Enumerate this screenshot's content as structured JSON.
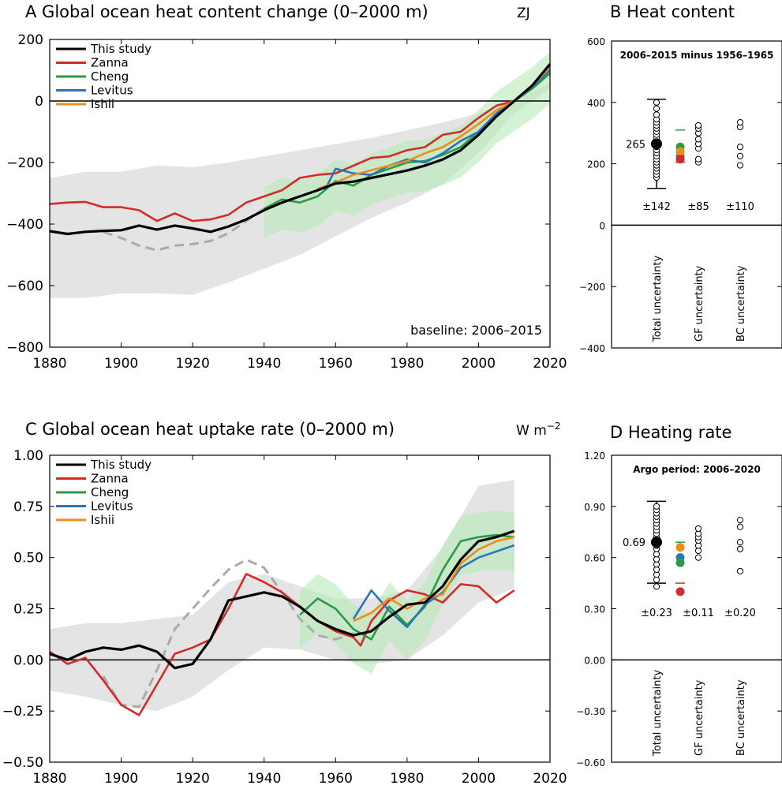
{
  "colors": {
    "this_study": "#000000",
    "zanna": "#d42a2a",
    "cheng": "#2a9b44",
    "levitus": "#2a74b8",
    "ishii": "#f08c1a",
    "uncertainty_band": "#e4e4e4",
    "cheng_band": "#b8ebb8",
    "levitus_band": "#b8cdea",
    "early_estimate": "#aaaaaa"
  },
  "chart_data": [
    {
      "id": "A",
      "type": "line",
      "letter": "A",
      "title": "Global ocean heat content change (0–2000 m)",
      "unit": "ZJ",
      "baseline_note": "baseline: 2006–2015",
      "xlim": [
        1880,
        2020
      ],
      "ylim": [
        -800,
        200
      ],
      "xticks": [
        "1880",
        "1900",
        "1920",
        "1940",
        "1960",
        "1980",
        "2000",
        "2020"
      ],
      "yticks": [
        "200",
        "0",
        "−200",
        "−400",
        "−600",
        "−800"
      ],
      "legend": [
        "This study",
        "Zanna",
        "Cheng",
        "Levitus",
        "Ishii"
      ],
      "series": [
        {
          "name": "This study",
          "x": [
            1880,
            1885,
            1890,
            1895,
            1900,
            1905,
            1910,
            1915,
            1920,
            1925,
            1930,
            1935,
            1940,
            1945,
            1950,
            1955,
            1960,
            1965,
            1970,
            1975,
            1980,
            1985,
            1990,
            1995,
            2000,
            2005,
            2010,
            2015,
            2020
          ],
          "y": [
            -423,
            -432,
            -425,
            -422,
            -420,
            -405,
            -418,
            -405,
            -414,
            -425,
            -408,
            -385,
            -355,
            -330,
            -310,
            -290,
            -268,
            -262,
            -250,
            -238,
            -226,
            -210,
            -190,
            -160,
            -110,
            -50,
            0,
            50,
            120
          ]
        },
        {
          "name": "Zanna",
          "x": [
            1880,
            1885,
            1890,
            1895,
            1900,
            1905,
            1910,
            1915,
            1920,
            1925,
            1930,
            1935,
            1940,
            1945,
            1950,
            1955,
            1960,
            1965,
            1970,
            1975,
            1980,
            1985,
            1990,
            1995,
            2000,
            2005,
            2010,
            2015,
            2018
          ],
          "y": [
            -335,
            -330,
            -328,
            -345,
            -345,
            -355,
            -390,
            -365,
            -390,
            -385,
            -370,
            -330,
            -310,
            -290,
            -250,
            -240,
            -235,
            -210,
            -185,
            -180,
            -160,
            -150,
            -110,
            -100,
            -55,
            -15,
            0,
            45,
            70
          ]
        },
        {
          "name": "Cheng",
          "x": [
            1940,
            1945,
            1950,
            1955,
            1960,
            1965,
            1970,
            1975,
            1980,
            1985,
            1990,
            1995,
            2000,
            2005,
            2010,
            2015,
            2020
          ],
          "y": [
            -350,
            -320,
            -330,
            -310,
            -260,
            -275,
            -240,
            -220,
            -200,
            -195,
            -175,
            -150,
            -100,
            -40,
            0,
            40,
            90
          ]
        },
        {
          "name": "Levitus",
          "x": [
            1957,
            1960,
            1965,
            1970,
            1975,
            1980,
            1985,
            1990,
            1995,
            2000,
            2005,
            2010,
            2015,
            2020
          ],
          "y": [
            -290,
            -220,
            -235,
            -240,
            -210,
            -190,
            -200,
            -170,
            -130,
            -100,
            -40,
            0,
            45,
            100
          ]
        },
        {
          "name": "Ishii",
          "x": [
            1955,
            1960,
            1965,
            1970,
            1975,
            1980,
            1985,
            1990,
            1995,
            2000,
            2005,
            2010,
            2015,
            2020
          ],
          "y": [
            -285,
            -265,
            -240,
            -225,
            -210,
            -195,
            -170,
            -150,
            -115,
            -75,
            -30,
            0,
            50,
            110
          ]
        }
      ],
      "early_estimate": {
        "x": [
          1895,
          1900,
          1905,
          1910,
          1915,
          1920,
          1925,
          1930,
          1935,
          1940
        ],
        "y": [
          -425,
          -445,
          -470,
          -485,
          -470,
          -465,
          -455,
          -430,
          -390,
          -350
        ]
      },
      "band": {
        "x": [
          1880,
          1890,
          1900,
          1910,
          1920,
          1930,
          1940,
          1950,
          1960,
          1970,
          1980,
          1990,
          2000,
          2010,
          2020
        ],
        "upper": [
          -250,
          -230,
          -230,
          -210,
          -215,
          -200,
          -180,
          -160,
          -140,
          -120,
          -95,
          -70,
          -40,
          0,
          60
        ],
        "lower": [
          -640,
          -640,
          -625,
          -625,
          -630,
          -590,
          -545,
          -500,
          -440,
          -380,
          -330,
          -270,
          -170,
          -40,
          40
        ]
      }
    },
    {
      "id": "B",
      "type": "scatter",
      "letter": "B",
      "title": "Heat content",
      "subtitle": "2006–2015 minus 1956–1965",
      "ylim": [
        -400,
        600
      ],
      "yticks": [
        "600",
        "400",
        "200",
        "0",
        "−200",
        "−400"
      ],
      "groups": [
        "Total uncertainty",
        "GF uncertainty",
        "BC uncertainty"
      ],
      "mean_label": "265",
      "mean_value": 265,
      "total_range": [
        120,
        410
      ],
      "uncertainties": [
        "±142",
        "±85",
        "±110"
      ],
      "total_points": [
        155,
        165,
        175,
        185,
        195,
        205,
        215,
        225,
        235,
        245,
        255,
        265,
        275,
        285,
        295,
        305,
        315,
        325,
        335,
        345,
        360,
        380,
        400
      ],
      "gf_points": [
        205,
        215,
        250,
        265,
        280,
        300,
        315,
        325
      ],
      "bc_points": [
        195,
        225,
        255,
        320,
        335
      ],
      "colored_points": [
        {
          "series": "Cheng",
          "value": 255
        },
        {
          "series": "Levitus",
          "value": 225
        },
        {
          "series": "Ishii",
          "value": 240
        },
        {
          "series": "Zanna",
          "value": 215
        }
      ],
      "green_marker": 310,
      "red_marker": 205
    },
    {
      "id": "C",
      "type": "line",
      "letter": "C",
      "title": "Global ocean heat uptake rate (0–2000 m)",
      "unit": "W m",
      "unit_sup": "−2",
      "xlim": [
        1880,
        2020
      ],
      "ylim": [
        -0.5,
        1.0
      ],
      "xticks": [
        "1880",
        "1900",
        "1920",
        "1940",
        "1960",
        "1980",
        "2000",
        "2020"
      ],
      "yticks": [
        "1.00",
        "0.75",
        "0.50",
        "0.25",
        "0.00",
        "−0.25",
        "−0.50"
      ],
      "legend": [
        "This study",
        "Zanna",
        "Cheng",
        "Levitus",
        "Ishii"
      ],
      "series": [
        {
          "name": "This study",
          "x": [
            1880,
            1885,
            1890,
            1895,
            1900,
            1905,
            1910,
            1915,
            1920,
            1925,
            1930,
            1935,
            1940,
            1945,
            1950,
            1955,
            1960,
            1965,
            1970,
            1975,
            1980,
            1985,
            1990,
            1995,
            2000,
            2005,
            2010
          ],
          "y": [
            0.03,
            0.0,
            0.04,
            0.06,
            0.05,
            0.07,
            0.04,
            -0.04,
            -0.02,
            0.1,
            0.29,
            0.31,
            0.33,
            0.31,
            0.26,
            0.19,
            0.15,
            0.12,
            0.14,
            0.21,
            0.27,
            0.28,
            0.36,
            0.49,
            0.58,
            0.6,
            0.63
          ]
        },
        {
          "name": "Zanna",
          "x": [
            1880,
            1885,
            1890,
            1895,
            1900,
            1905,
            1910,
            1915,
            1920,
            1925,
            1930,
            1935,
            1940,
            1945,
            1950,
            1955,
            1960,
            1965,
            1967,
            1970,
            1975,
            1980,
            1985,
            1990,
            1995,
            2000,
            2005,
            2010
          ],
          "y": [
            0.04,
            -0.02,
            0.01,
            -0.1,
            -0.22,
            -0.27,
            -0.12,
            0.03,
            0.06,
            0.1,
            0.25,
            0.42,
            0.38,
            0.33,
            0.26,
            0.19,
            0.14,
            0.11,
            0.07,
            0.19,
            0.29,
            0.34,
            0.32,
            0.28,
            0.37,
            0.36,
            0.28,
            0.34
          ]
        },
        {
          "name": "Cheng",
          "x": [
            1950,
            1955,
            1960,
            1965,
            1970,
            1975,
            1980,
            1985,
            1990,
            1995,
            2000,
            2005,
            2010
          ],
          "y": [
            0.22,
            0.3,
            0.25,
            0.15,
            0.1,
            0.26,
            0.17,
            0.26,
            0.44,
            0.58,
            0.6,
            0.61,
            0.6
          ]
        },
        {
          "name": "Levitus",
          "x": [
            1965,
            1970,
            1975,
            1980,
            1985,
            1990,
            1995,
            2000,
            2005,
            2010
          ],
          "y": [
            0.2,
            0.34,
            0.24,
            0.16,
            0.27,
            0.33,
            0.45,
            0.5,
            0.53,
            0.56
          ]
        },
        {
          "name": "Ishii",
          "x": [
            1965,
            1970,
            1975,
            1980,
            1985,
            1990,
            1995,
            2000,
            2005,
            2010
          ],
          "y": [
            0.19,
            0.23,
            0.3,
            0.25,
            0.3,
            0.32,
            0.47,
            0.54,
            0.58,
            0.6
          ]
        }
      ],
      "early_estimate": {
        "x": [
          1895,
          1900,
          1905,
          1910,
          1915,
          1920,
          1925,
          1930,
          1935,
          1940,
          1945,
          1950,
          1955,
          1960,
          1965
        ],
        "y": [
          -0.08,
          -0.22,
          -0.23,
          -0.05,
          0.15,
          0.25,
          0.35,
          0.44,
          0.49,
          0.45,
          0.33,
          0.2,
          0.12,
          0.1,
          0.13
        ]
      },
      "band": {
        "x": [
          1880,
          1890,
          1900,
          1910,
          1920,
          1930,
          1940,
          1950,
          1960,
          1970,
          1980,
          1990,
          2000,
          2010
        ],
        "upper": [
          0.15,
          0.18,
          0.18,
          0.2,
          0.22,
          0.38,
          0.42,
          0.36,
          0.3,
          0.3,
          0.34,
          0.55,
          0.85,
          0.88
        ],
        "lower": [
          -0.15,
          -0.18,
          -0.22,
          -0.25,
          -0.18,
          -0.05,
          0.06,
          0.05,
          0.0,
          -0.02,
          0.0,
          0.12,
          0.28,
          0.35
        ]
      }
    },
    {
      "id": "D",
      "type": "scatter",
      "letter": "D",
      "title": "Heating rate",
      "subtitle": "Argo period: 2006–2020",
      "ylim": [
        -0.6,
        1.2
      ],
      "yticks": [
        "1.20",
        "0.90",
        "0.60",
        "0.30",
        "0.00",
        "−0.30",
        "−0.60"
      ],
      "groups": [
        "Total uncertainty",
        "GF uncertainty",
        "BC uncertainty"
      ],
      "mean_label": "0.69",
      "mean_value": 0.69,
      "total_range": [
        0.45,
        0.93
      ],
      "uncertainties": [
        "±0.23",
        "±0.11",
        "±0.20"
      ],
      "total_points": [
        0.43,
        0.47,
        0.5,
        0.53,
        0.56,
        0.59,
        0.62,
        0.65,
        0.67,
        0.7,
        0.72,
        0.74,
        0.76,
        0.78,
        0.8,
        0.82,
        0.84,
        0.86,
        0.88,
        0.9
      ],
      "gf_points": [
        0.6,
        0.64,
        0.67,
        0.7,
        0.72,
        0.74,
        0.77
      ],
      "bc_points": [
        0.52,
        0.65,
        0.69,
        0.78,
        0.82
      ],
      "colored_points": [
        {
          "series": "Ishii",
          "value": 0.66
        },
        {
          "series": "Levitus",
          "value": 0.6
        },
        {
          "series": "Cheng",
          "value": 0.57
        },
        {
          "series": "Zanna",
          "value": 0.4
        }
      ],
      "green_marker": 0.69,
      "red_marker": 0.45
    }
  ]
}
